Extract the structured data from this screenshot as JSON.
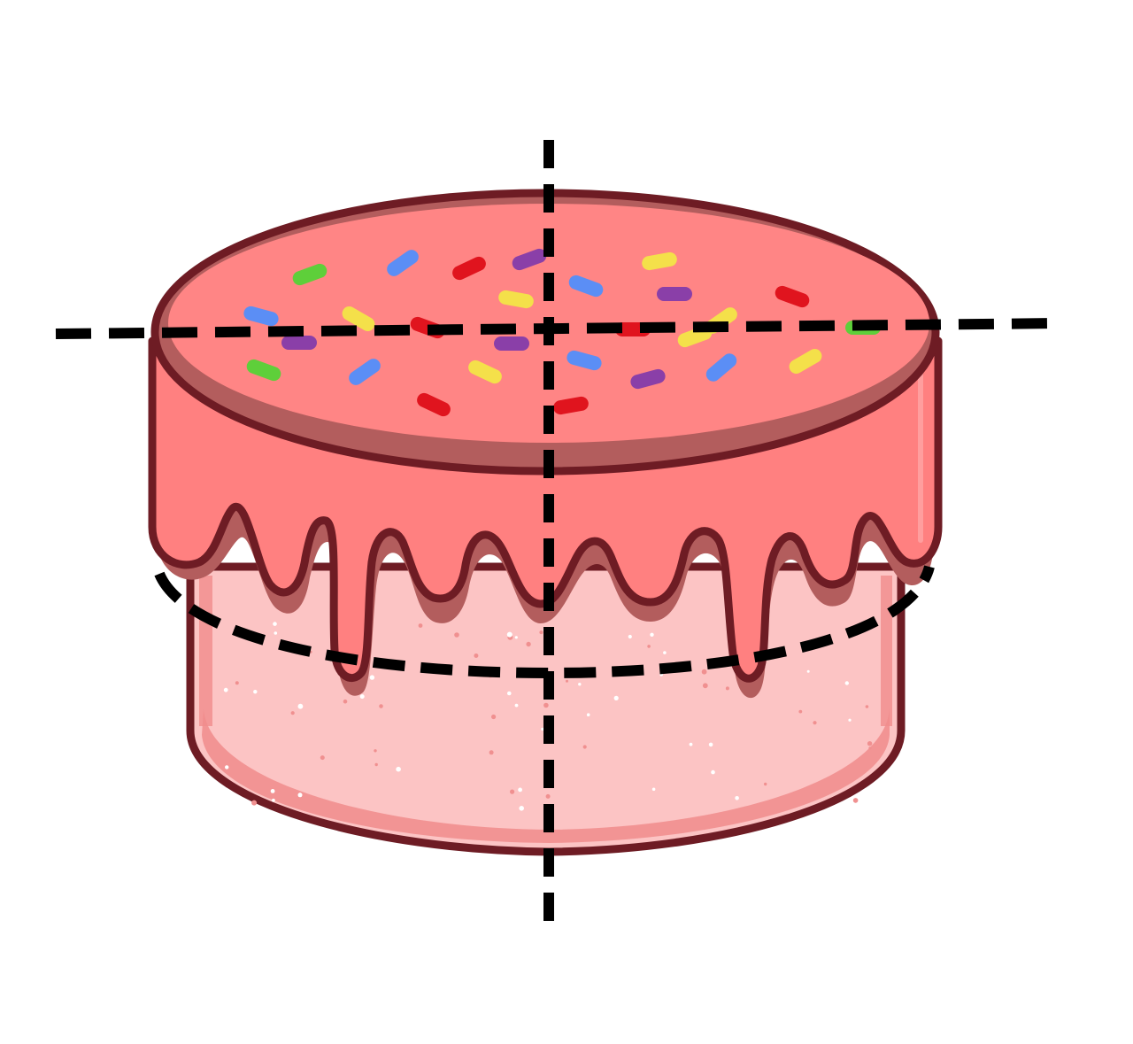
{
  "colors": {
    "background": "#ffffff",
    "outline": "#6e1c24",
    "icing_top": "#ff8585",
    "icing_rim": "#b35d5d",
    "icing_side": "#ff8080",
    "drip_shadow": "#b35d5d",
    "sponge": "#fcc4c4",
    "sponge_edge": "#f08c8c",
    "speckle_dark": "#f09090",
    "speckle_light": "#ffffff",
    "cut_line": "#000000",
    "sprinkle_blue": "#5b8ef5",
    "sprinkle_red": "#e0141e",
    "sprinkle_purple": "#8a3fa8",
    "sprinkle_yellow": "#f4e04a",
    "sprinkle_green": "#5ecf3a"
  },
  "objects": {
    "cake": "round-layer-cake-with-drip-icing-and-sprinkles",
    "cut_lines": [
      "vertical-dashed-cut",
      "horizontal-dashed-cut-through-top",
      "dashed-ellipse-cut-around-side"
    ]
  }
}
